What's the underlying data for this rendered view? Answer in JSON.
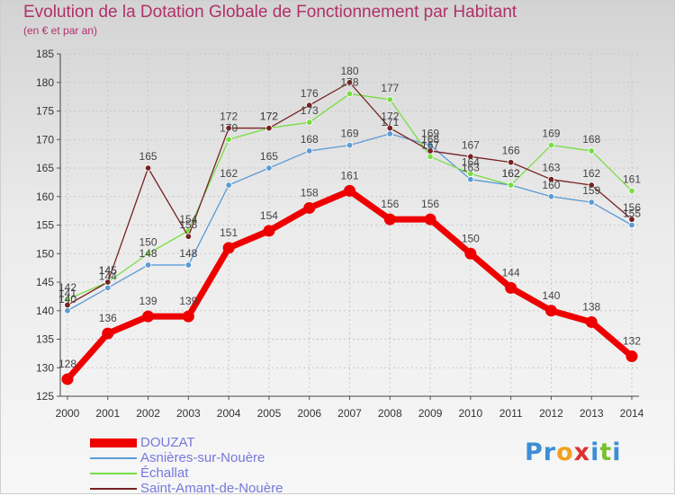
{
  "header": {
    "title": "Evolution de la Dotation Globale de Fonctionnement par Habitant",
    "subtitle": "(en € et par an)"
  },
  "logo": {
    "text": "Proxiti"
  },
  "chart_data": {
    "type": "line",
    "title": "Evolution de la Dotation Globale de Fonctionnement par Habitant",
    "subtitle": "(en € et par an)",
    "x": [
      "2000",
      "2001",
      "2002",
      "2003",
      "2004",
      "2005",
      "2006",
      "2007",
      "2008",
      "2009",
      "2010",
      "2011",
      "2012",
      "2013",
      "2014"
    ],
    "ylim": [
      125,
      185
    ],
    "yticks": [
      125,
      130,
      135,
      140,
      145,
      150,
      155,
      160,
      165,
      170,
      175,
      180,
      185
    ],
    "grid": true,
    "legend_position": "bottom-left",
    "series": [
      {
        "name": "DOUZAT",
        "color": "#ee0000",
        "values": [
          128,
          136,
          139,
          139,
          151,
          154,
          158,
          161,
          156,
          156,
          150,
          144,
          140,
          138,
          132
        ]
      },
      {
        "name": "Asnières-sur-Nouère",
        "color": "#5b9bd5",
        "values": [
          140,
          144,
          148,
          148,
          162,
          165,
          168,
          169,
          171,
          169,
          163,
          162,
          160,
          159,
          155
        ]
      },
      {
        "name": "Échallat",
        "color": "#77dd44",
        "values": [
          142,
          145,
          150,
          154,
          170,
          172,
          173,
          178,
          177,
          167,
          164,
          162,
          169,
          168,
          161
        ]
      },
      {
        "name": "Saint-Amant-de-Nouère",
        "color": "#772222",
        "values": [
          141,
          145,
          165,
          153,
          172,
          172,
          176,
          180,
          172,
          168,
          167,
          166,
          163,
          162,
          156
        ]
      }
    ]
  }
}
